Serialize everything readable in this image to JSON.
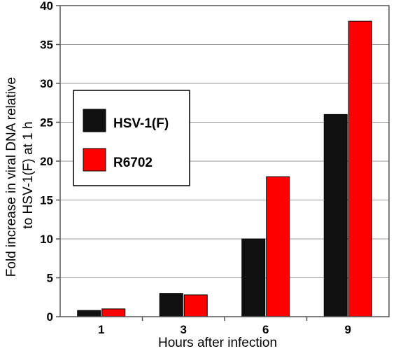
{
  "chart_data": {
    "type": "bar",
    "categories": [
      "1",
      "3",
      "6",
      "9"
    ],
    "series": [
      {
        "name": "HSV-1(F)",
        "color": "#111111",
        "values": [
          0.8,
          3,
          10,
          26
        ]
      },
      {
        "name": "R6702",
        "color": "#ff0000",
        "values": [
          1,
          2.8,
          18,
          38
        ]
      }
    ],
    "xlabel": "Hours after infection",
    "ylabel": [
      "Fold increase in viral DNA relative",
      "to HSV-1(F) at 1 h"
    ],
    "ylim": [
      0,
      40
    ],
    "yticks": [
      0,
      5,
      10,
      15,
      20,
      25,
      30,
      35,
      40
    ],
    "grid": true,
    "legend_position": "top-left"
  }
}
